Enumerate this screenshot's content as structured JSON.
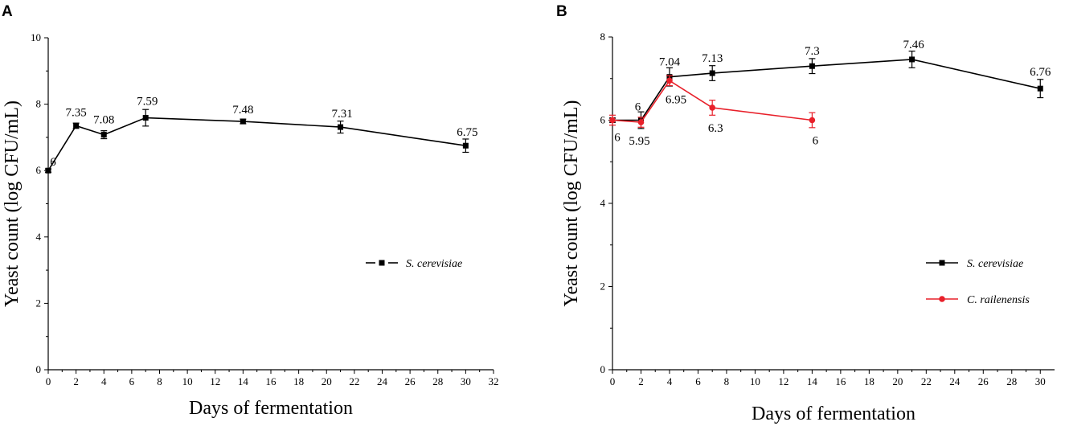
{
  "chart_data": [
    {
      "panel": "A",
      "type": "line",
      "xlabel": "Days of fermentation",
      "ylabel": "Yeast count (log CFU/mL)",
      "xlim": [
        0,
        32
      ],
      "ylim": [
        0,
        10
      ],
      "xticks": [
        0,
        2,
        4,
        6,
        8,
        10,
        12,
        14,
        16,
        18,
        20,
        22,
        24,
        26,
        28,
        30,
        32
      ],
      "yticks": [
        0,
        2,
        4,
        6,
        8,
        10
      ],
      "legend_position": "center-right",
      "series": [
        {
          "name": "S. cerevisiae",
          "color": "#000000",
          "marker": "square",
          "x": [
            0,
            2,
            4,
            7,
            14,
            21,
            30
          ],
          "y": [
            6,
            7.35,
            7.08,
            7.59,
            7.48,
            7.31,
            6.75
          ],
          "err": [
            0.05,
            0.08,
            0.12,
            0.25,
            0.07,
            0.18,
            0.2
          ],
          "labels": [
            "6",
            "7.35",
            "7.08",
            "7.59",
            "7.48",
            "7.31",
            "6.75"
          ],
          "label_pos": [
            "above-right",
            "above",
            "above",
            "above",
            "above",
            "above",
            "above"
          ]
        }
      ]
    },
    {
      "panel": "B",
      "type": "line",
      "xlabel": "Days of fermentation",
      "ylabel": "Yeast count (log CFU/mL)",
      "xlim": [
        0,
        31
      ],
      "ylim": [
        0,
        8
      ],
      "xticks": [
        0,
        2,
        4,
        6,
        8,
        10,
        12,
        14,
        16,
        18,
        20,
        22,
        24,
        26,
        28,
        30
      ],
      "yticks": [
        0,
        2,
        4,
        6,
        8
      ],
      "legend_position": "bottom-right",
      "series": [
        {
          "name": "S. cerevisiae",
          "color": "#000000",
          "marker": "square",
          "x": [
            0,
            2,
            4,
            7,
            14,
            21,
            30
          ],
          "y": [
            6,
            6,
            7.04,
            7.13,
            7.3,
            7.46,
            6.76
          ],
          "err": [
            0.05,
            0.2,
            0.22,
            0.18,
            0.18,
            0.2,
            0.22
          ],
          "labels": [
            "",
            "6",
            "7.04",
            "7.13",
            "7.3",
            "7.46",
            "6.76"
          ],
          "label_pos": [
            "above",
            "above",
            "above",
            "above",
            "above",
            "above",
            "above"
          ]
        },
        {
          "name": "C. railenensis",
          "color": "#e8202a",
          "marker": "circle",
          "x": [
            0,
            2,
            4,
            7,
            14
          ],
          "y": [
            6,
            5.95,
            6.95,
            6.3,
            6
          ],
          "err": [
            0.12,
            0.12,
            0.12,
            0.18,
            0.18
          ],
          "labels": [
            "6",
            "5.95",
            "6.95",
            "6.3",
            "6"
          ],
          "label_pos": [
            "below",
            "below",
            "below",
            "below",
            "below"
          ]
        }
      ]
    }
  ]
}
